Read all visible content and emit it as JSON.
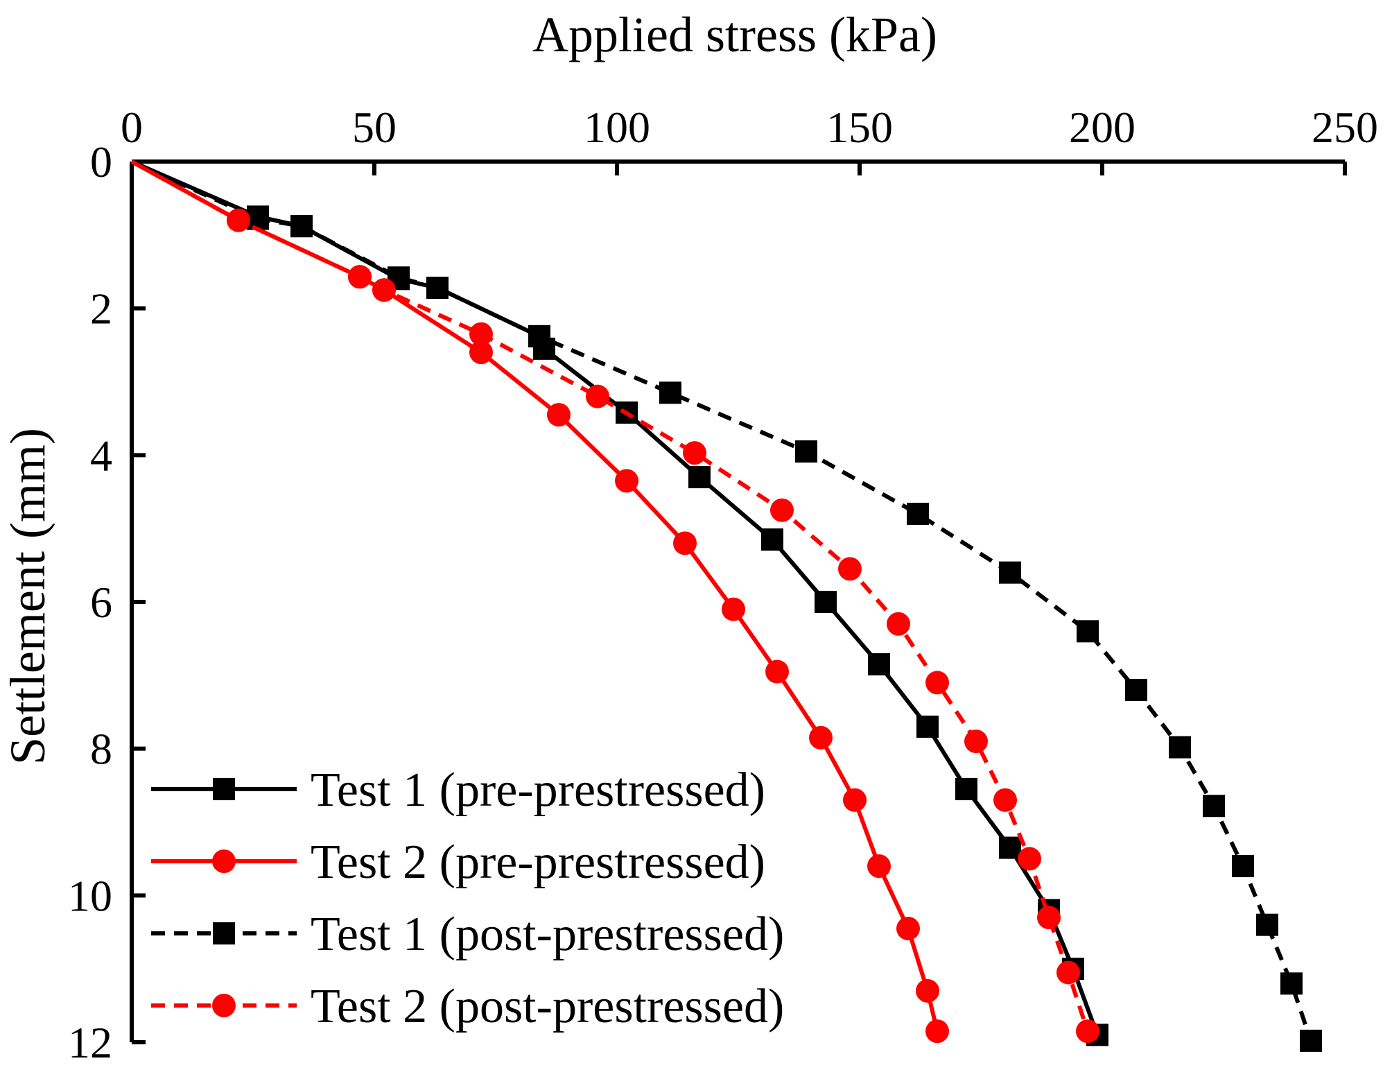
{
  "chart_data": {
    "type": "line",
    "title": "",
    "xlabel": "Applied stress (kPa)",
    "ylabel": "Settlement (mm)",
    "xlim": [
      0,
      250
    ],
    "ylim": [
      0,
      12
    ],
    "y_inverted": true,
    "x_axis_position": "top",
    "xticks": [
      0,
      50,
      100,
      150,
      200,
      250
    ],
    "yticks": [
      0,
      2,
      4,
      6,
      8,
      10,
      12
    ],
    "legend_position": "bottom-left",
    "grid": false,
    "series": [
      {
        "name": "Test 1 (pre-prestressed)",
        "color": "#000000",
        "line_style": "solid",
        "marker": "square",
        "x": [
          0,
          26,
          35,
          55,
          63,
          84,
          85,
          102,
          117,
          132,
          143,
          154,
          164,
          172,
          181,
          189,
          194,
          199
        ],
        "y": [
          0,
          0.75,
          0.88,
          1.6,
          1.72,
          2.38,
          2.55,
          3.42,
          4.3,
          5.15,
          6.0,
          6.85,
          7.7,
          8.55,
          9.35,
          10.2,
          11.0,
          11.9
        ]
      },
      {
        "name": "Test 2 (pre-prestressed)",
        "color": "#ff0000",
        "line_style": "solid",
        "marker": "circle",
        "x": [
          0,
          22,
          47,
          52,
          72,
          88,
          102,
          114,
          124,
          133,
          142,
          149,
          154,
          160,
          164,
          166
        ],
        "y": [
          0,
          0.8,
          1.57,
          1.75,
          2.6,
          3.45,
          4.35,
          5.2,
          6.1,
          6.95,
          7.85,
          8.7,
          9.6,
          10.45,
          11.3,
          11.85
        ]
      },
      {
        "name": "Test 1 (post-prestressed)",
        "color": "#000000",
        "line_style": "dashed",
        "marker": "square",
        "x": [
          0,
          26,
          35,
          55,
          63,
          84,
          111,
          139,
          162,
          181,
          197,
          207,
          216,
          223,
          229,
          234,
          239,
          243
        ],
        "y": [
          0,
          0.78,
          0.88,
          1.58,
          1.72,
          2.38,
          3.15,
          3.95,
          4.8,
          5.6,
          6.4,
          7.2,
          7.98,
          8.78,
          9.6,
          10.4,
          11.2,
          11.98
        ]
      },
      {
        "name": "Test 2 (post-prestressed)",
        "color": "#ff0000",
        "line_style": "dashed",
        "marker": "circle",
        "x": [
          0,
          22,
          47,
          52,
          72,
          96,
          116,
          134,
          148,
          158,
          166,
          174,
          180,
          185,
          189,
          193,
          197
        ],
        "y": [
          0,
          0.8,
          1.57,
          1.75,
          2.35,
          3.2,
          3.97,
          4.75,
          5.55,
          6.3,
          7.1,
          7.9,
          8.7,
          9.5,
          10.3,
          11.05,
          11.85
        ]
      }
    ]
  }
}
